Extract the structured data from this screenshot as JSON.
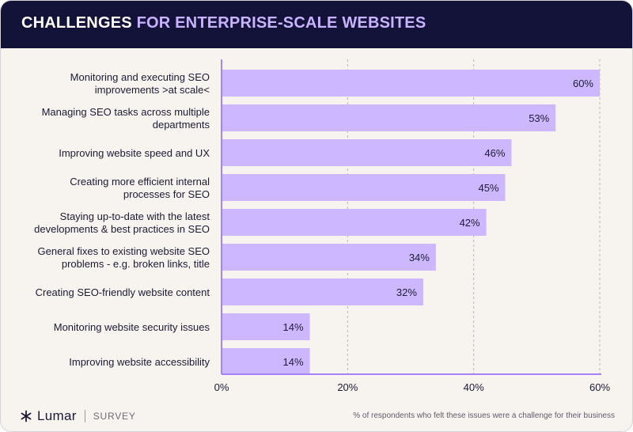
{
  "header": {
    "title_part1": "CHALLENGES",
    "title_part2": "FOR ENTERPRISE-SCALE WEBSITES"
  },
  "colors": {
    "bar": "#cdb8ff",
    "accent": "#c9b3ff",
    "header_bg": "#13133a",
    "axis": "#a583f7"
  },
  "chart_data": {
    "type": "bar",
    "orientation": "horizontal",
    "categories": [
      [
        "Monitoring and executing SEO",
        "improvements >at scale<"
      ],
      [
        "Managing SEO tasks across multiple",
        "departments"
      ],
      [
        "Improving website speed and UX"
      ],
      [
        "Creating more efficient internal",
        "processes for SEO"
      ],
      [
        "Staying up-to-date with the latest",
        "developments & best practices in SEO"
      ],
      [
        "General fixes to existing website SEO",
        "problems - e.g. broken links, title"
      ],
      [
        "Creating SEO-friendly website content"
      ],
      [
        "Monitoring website security issues"
      ],
      [
        "Improving website accessibility"
      ]
    ],
    "values": [
      60,
      53,
      46,
      45,
      42,
      34,
      32,
      14,
      14
    ],
    "value_labels": [
      "60%",
      "53%",
      "46%",
      "45%",
      "42%",
      "34%",
      "32%",
      "14%",
      "14%"
    ],
    "xlim": [
      0,
      60
    ],
    "ticks": [
      0,
      20,
      40,
      60
    ],
    "tick_labels": [
      "0%",
      "20%",
      "40%",
      "60%"
    ],
    "grid": true
  },
  "footer": {
    "logo_icon": "lumar-asterisk-icon",
    "brand": "Lumar",
    "tag": "SURVEY",
    "note": "% of respondents who felt these issues were a challenge for their business"
  }
}
